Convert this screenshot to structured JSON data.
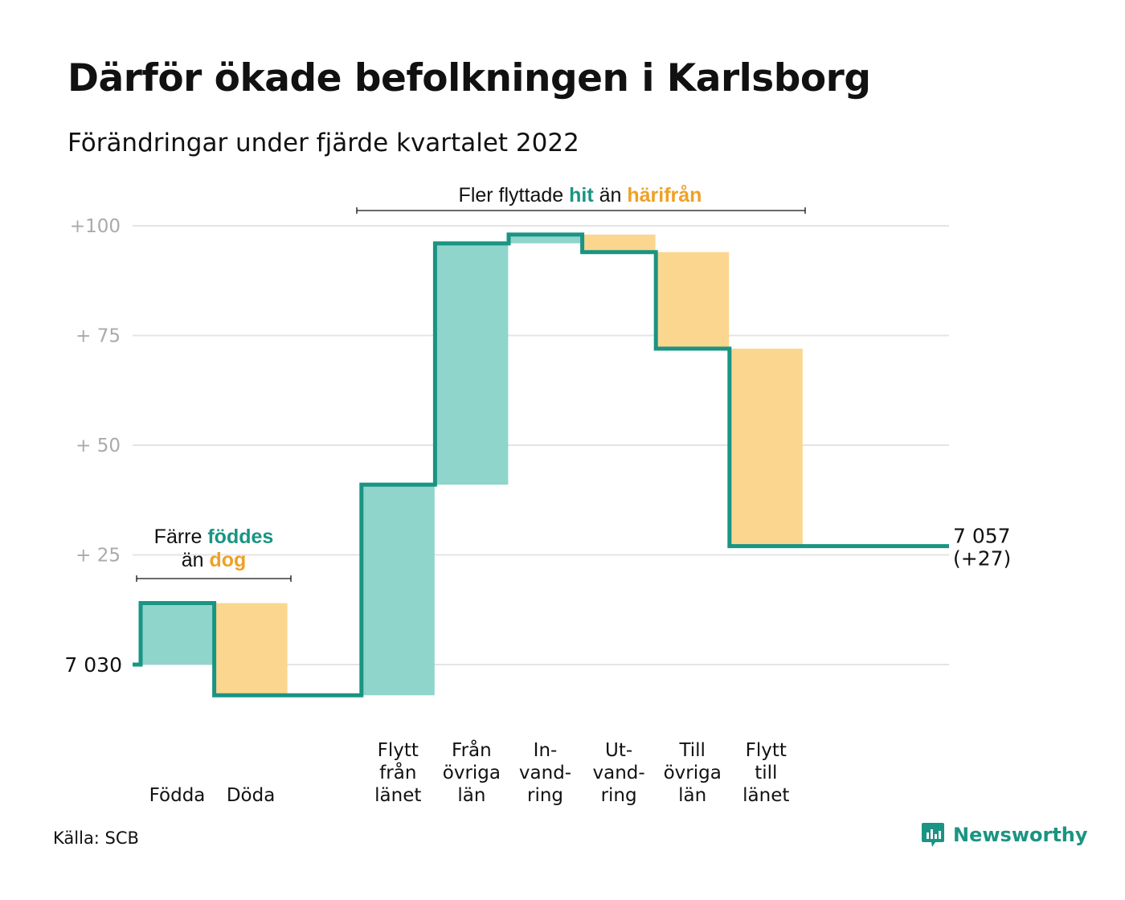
{
  "title": "Därför ökade befolkningen i Karlsborg",
  "subtitle": "Förändringar under fjärde kvartalet 2022",
  "source": "Källa: SCB",
  "brand": "Newsworthy",
  "colors": {
    "increase": "#8fd5cb",
    "decrease": "#fad68f",
    "line": "#1a9483",
    "orange_text": "#f0a024",
    "grid": "#e4e4e4",
    "tick": "#aaaaaa"
  },
  "annotations": {
    "births": {
      "lines": [
        [
          {
            "text": "Färre ",
            "hl": null
          },
          {
            "text": "föddes",
            "hl": "teal"
          }
        ],
        [
          {
            "text": "än ",
            "hl": null
          },
          {
            "text": "dog",
            "hl": "orange"
          }
        ]
      ]
    },
    "migration": {
      "lines": [
        [
          {
            "text": "Fler flyttade ",
            "hl": null
          },
          {
            "text": "hit",
            "hl": "teal"
          },
          {
            "text": " än ",
            "hl": null
          },
          {
            "text": "härifrån",
            "hl": "orange"
          }
        ]
      ]
    }
  },
  "chart_data": {
    "type": "waterfall",
    "start": {
      "label": "7 030",
      "value": 0
    },
    "end": {
      "label": "7 057",
      "sublabel": "(+27)",
      "value": 27
    },
    "ylim": [
      -7,
      100
    ],
    "yticks": [
      {
        "value": 100,
        "label": "+100"
      },
      {
        "value": 75,
        "label": "+ 75"
      },
      {
        "value": 50,
        "label": "+ 50"
      },
      {
        "value": 25,
        "label": "+ 25"
      },
      {
        "value": 0,
        "label": ""
      }
    ],
    "steps": [
      {
        "label": [
          "Födda"
        ],
        "change": 14,
        "group": "births"
      },
      {
        "label": [
          "Döda"
        ],
        "change": -21,
        "group": "births"
      },
      {
        "label": [],
        "change": 0,
        "group": "gap"
      },
      {
        "label": [
          "Flytt",
          "från",
          "länet"
        ],
        "change": 48,
        "group": "migration"
      },
      {
        "label": [
          "Från",
          "övriga",
          "län"
        ],
        "change": 55,
        "group": "migration"
      },
      {
        "label": [
          "In-",
          "vand-",
          "ring"
        ],
        "change": 2,
        "group": "migration"
      },
      {
        "label": [
          "Ut-",
          "vand-",
          "ring"
        ],
        "change": -4,
        "group": "migration"
      },
      {
        "label": [
          "Till",
          "övriga",
          "län"
        ],
        "change": -22,
        "group": "migration"
      },
      {
        "label": [
          "Flytt",
          "till",
          "länet"
        ],
        "change": -45,
        "group": "migration"
      }
    ]
  }
}
